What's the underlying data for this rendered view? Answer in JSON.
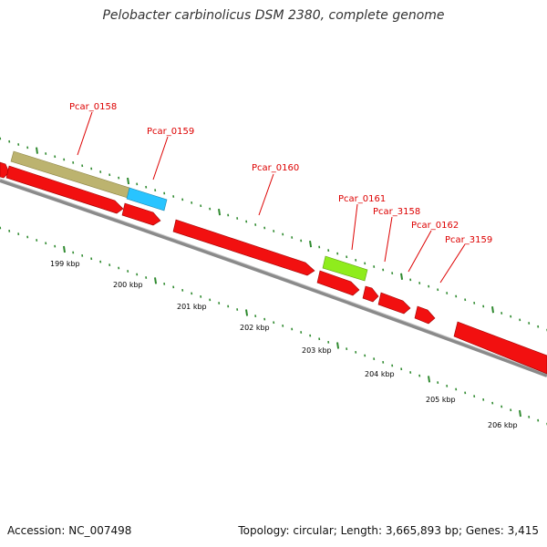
{
  "title": "Pelobacter carbinolicus DSM 2380, complete genome",
  "colors": {
    "forward": "#f21010",
    "reverse_tan": "#bcb36f",
    "reverse_blue": "#28c4ff",
    "reverse_green": "#8fec1c",
    "backbone": "#777777",
    "tick": "#2f8a2f",
    "label": "#dd0000"
  },
  "genome": {
    "scale_labels": [
      "199 kbp",
      "200 kbp",
      "201 kbp",
      "202 kbp",
      "203 kbp",
      "204 kbp",
      "205 kbp",
      "206 kbp"
    ],
    "gene_labels": [
      "Pcar_0158",
      "Pcar_0159",
      "Pcar_0160",
      "Pcar_0161",
      "Pcar_3158",
      "Pcar_0162",
      "Pcar_3159"
    ]
  },
  "footer": {
    "accession": "Accession: NC_007498",
    "stats": "Topology: circular; Length: 3,665,893 bp; Genes: 3,415"
  }
}
